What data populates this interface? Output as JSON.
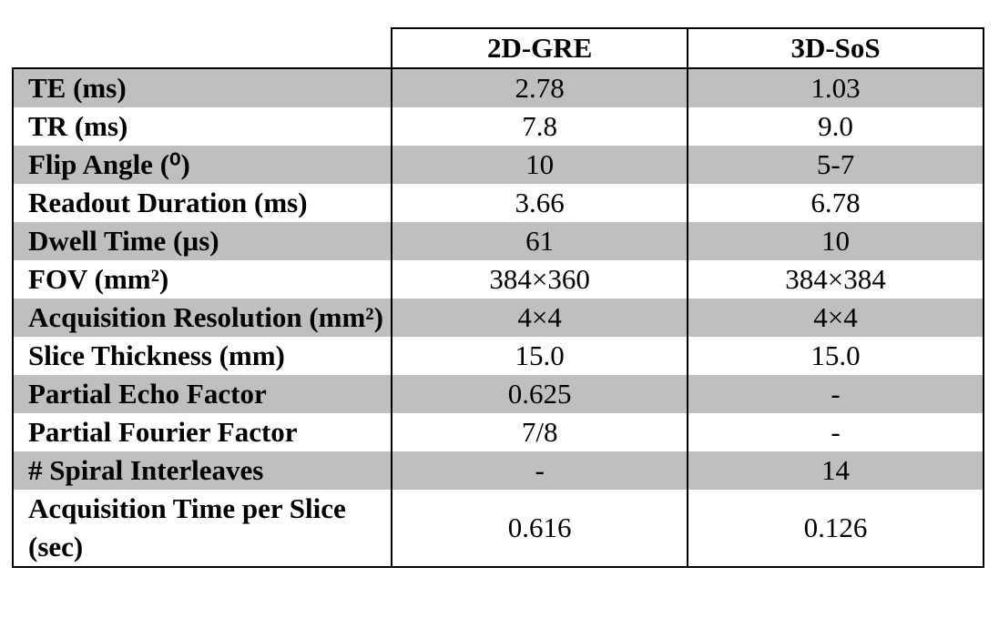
{
  "table": {
    "columns": [
      "2D-GRE",
      "3D-SoS"
    ],
    "rows": [
      {
        "label": "TE (ms)",
        "values": [
          "2.78",
          "1.03"
        ]
      },
      {
        "label": "TR (ms)",
        "values": [
          "7.8",
          "9.0"
        ]
      },
      {
        "label": "Flip Angle (⁰)",
        "values": [
          "10",
          "5-7"
        ]
      },
      {
        "label": "Readout Duration (ms)",
        "values": [
          "3.66",
          "6.78"
        ]
      },
      {
        "label": "Dwell Time (µs)",
        "values": [
          "61",
          "10"
        ]
      },
      {
        "label": "FOV (mm²)",
        "values": [
          "384×360",
          "384×384"
        ]
      },
      {
        "label": "Acquisition Resolution (mm²)",
        "values": [
          "4×4",
          "4×4"
        ]
      },
      {
        "label": "Slice Thickness (mm)",
        "values": [
          "15.0",
          "15.0"
        ]
      },
      {
        "label": "Partial Echo Factor",
        "values": [
          "0.625",
          "-"
        ]
      },
      {
        "label": "Partial Fourier Factor",
        "values": [
          "7/8",
          "-"
        ]
      },
      {
        "label": "# Spiral Interleaves",
        "values": [
          "-",
          "14"
        ]
      },
      {
        "label": "Acquisition Time per Slice (sec)",
        "values": [
          "0.616",
          "0.126"
        ]
      }
    ]
  }
}
